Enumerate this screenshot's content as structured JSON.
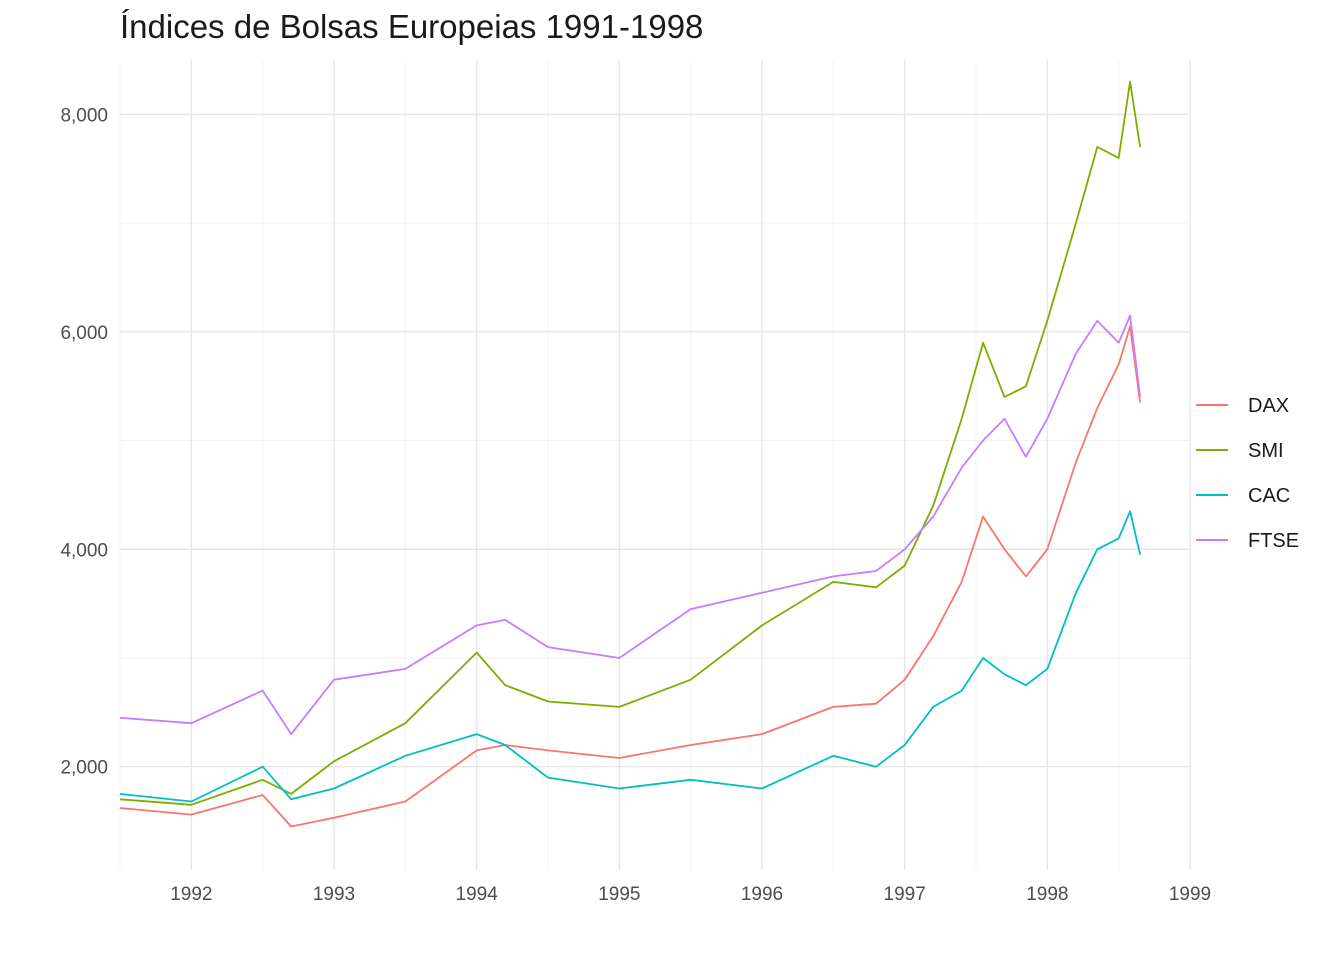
{
  "chart_data": {
    "type": "line",
    "title": "Índices de Bolsas Europeias 1991-1998",
    "xlabel": "",
    "ylabel": "",
    "xlim": [
      1991.5,
      1999.0
    ],
    "ylim": [
      1050,
      8500
    ],
    "x_ticks": [
      1992,
      1993,
      1994,
      1995,
      1996,
      1997,
      1998,
      1999
    ],
    "y_ticks": [
      2000,
      4000,
      6000,
      8000
    ],
    "y_tick_labels": [
      "2,000",
      "4,000",
      "6,000",
      "8,000"
    ],
    "grid": true,
    "legend_position": "right",
    "x": [
      1991.5,
      1992.0,
      1992.5,
      1992.7,
      1993.0,
      1993.5,
      1994.0,
      1994.2,
      1994.5,
      1995.0,
      1995.5,
      1996.0,
      1996.5,
      1996.8,
      1997.0,
      1997.2,
      1997.4,
      1997.55,
      1997.7,
      1997.85,
      1998.0,
      1998.2,
      1998.35,
      1998.5,
      1998.58,
      1998.65
    ],
    "series": [
      {
        "name": "DAX",
        "color": "#F8766D",
        "values": [
          1620,
          1560,
          1740,
          1450,
          1530,
          1680,
          2150,
          2200,
          2150,
          2080,
          2200,
          2300,
          2550,
          2580,
          2800,
          3200,
          3700,
          4300,
          4000,
          3750,
          4000,
          4800,
          5300,
          5700,
          6050,
          5350
        ]
      },
      {
        "name": "SMI",
        "color": "#7CAE00",
        "values": [
          1700,
          1650,
          1880,
          1750,
          2050,
          2400,
          3050,
          2750,
          2600,
          2550,
          2800,
          3300,
          3700,
          3650,
          3850,
          4400,
          5200,
          5900,
          5400,
          5500,
          6100,
          7000,
          7700,
          7600,
          8300,
          7700
        ]
      },
      {
        "name": "CAC",
        "color": "#00BFC4",
        "values": [
          1750,
          1680,
          2000,
          1700,
          1800,
          2100,
          2300,
          2200,
          1900,
          1800,
          1880,
          1800,
          2100,
          2000,
          2200,
          2550,
          2700,
          3000,
          2850,
          2750,
          2900,
          3600,
          4000,
          4100,
          4350,
          3950
        ]
      },
      {
        "name": "FTSE",
        "color": "#C77CFF",
        "values": [
          2450,
          2400,
          2700,
          2300,
          2800,
          2900,
          3300,
          3350,
          3100,
          3000,
          3450,
          3600,
          3750,
          3800,
          4000,
          4300,
          4750,
          5000,
          5200,
          4850,
          5200,
          5800,
          6100,
          5900,
          6150,
          5400
        ]
      }
    ]
  }
}
